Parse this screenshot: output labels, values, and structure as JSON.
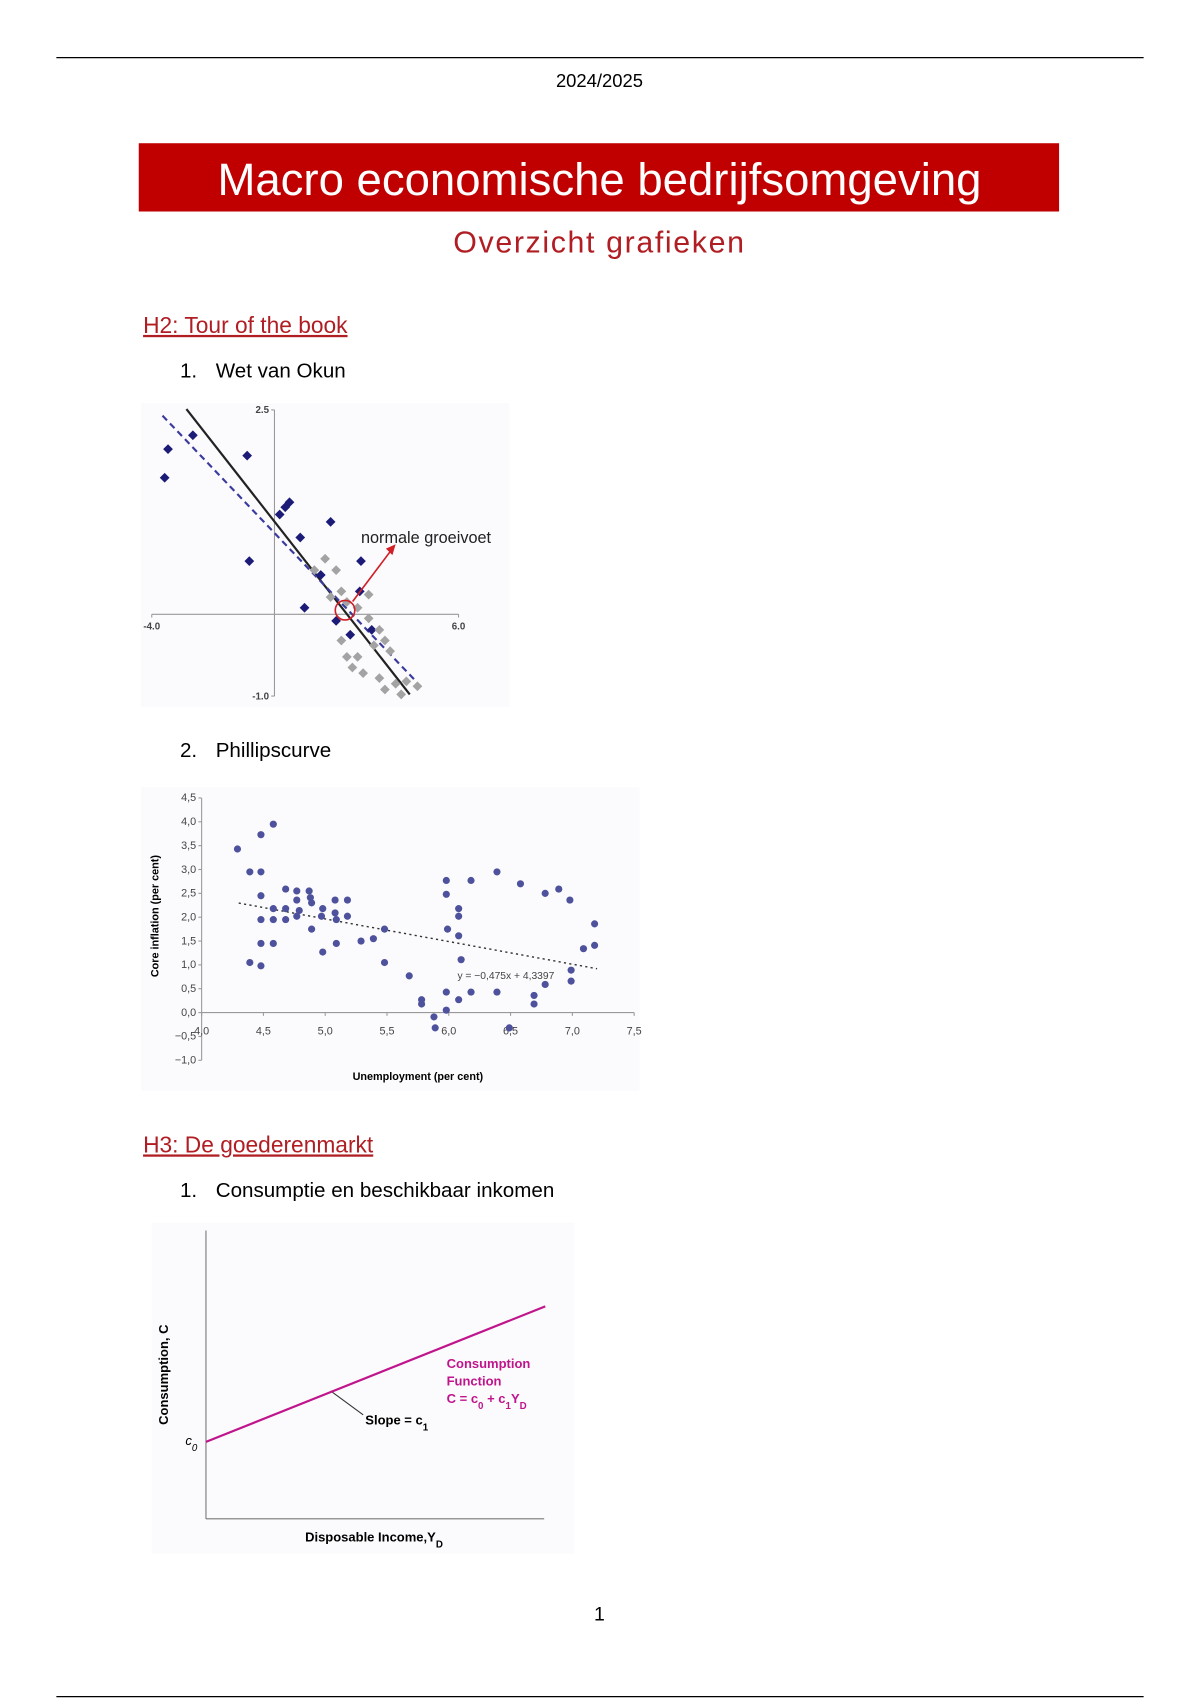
{
  "header": {
    "date": "2024/2025"
  },
  "title": "Macro economische bedrijfsomgeving",
  "subtitle": "Overzicht grafieken",
  "sections": [
    {
      "heading": "H2: Tour of the book",
      "items": [
        {
          "number": "1.",
          "label": "Wet van Okun"
        },
        {
          "number": "2.",
          "label": "Phillipscurve"
        }
      ]
    },
    {
      "heading": "H3: De goederenmarkt",
      "items": [
        {
          "number": "1.",
          "label": "Consumptie en beschikbaar inkomen"
        }
      ]
    }
  ],
  "footer": {
    "page": "1"
  },
  "chart_data": [
    {
      "type": "scatter",
      "xlim": [
        -4,
        6
      ],
      "ylim": [
        -1,
        2.5
      ],
      "xticks": [
        {
          "value": -4,
          "label": "-4.0"
        },
        {
          "value": 6,
          "label": "6.0"
        }
      ],
      "yticks": [
        2.5,
        {
          "value": -1,
          "label": "-1.0"
        }
      ],
      "series": [
        {
          "color": "#1c1c78",
          "marker": "diamond",
          "x": [
            -3.58,
            -3.47,
            -2.66,
            -0.89,
            -0.82,
            0.17,
            0.35,
            0.49,
            0.84,
            1.83,
            1.51,
            0.98,
            2.82,
            2.78,
            2.01,
            2.47,
            3.17
          ],
          "y": [
            1.67,
            2.02,
            2.19,
            1.94,
            0.65,
            1.22,
            1.31,
            1.37,
            0.94,
            1.13,
            0.48,
            0.08,
            0.65,
            0.28,
            -0.08,
            -0.25,
            -0.19
          ]
        },
        {
          "color": "#a3a3a3",
          "marker": "diamond",
          "x": [
            1.65,
            1.3,
            2.01,
            2.18,
            1.83,
            2.36,
            2.71,
            3.07,
            3.24,
            3.6,
            2.36,
            2.54,
            2.89,
            3.42,
            3.6,
            3.95,
            4.3,
            4.66,
            4.13,
            3.42,
            3.77,
            2.71,
            2.18,
            3.07
          ],
          "y": [
            0.68,
            0.54,
            0.54,
            0.28,
            0.21,
            0.15,
            0.08,
            -0.05,
            -0.38,
            -0.32,
            -0.52,
            -0.65,
            -0.72,
            -0.78,
            -0.92,
            -0.85,
            -0.82,
            -0.88,
            -0.98,
            -0.19,
            -0.45,
            -0.52,
            -0.32,
            0.24
          ]
        }
      ],
      "lines": [
        {
          "color": "#222222",
          "dash": false,
          "x": [
            -2.87,
            4.41
          ],
          "y": [
            2.51,
            -0.98
          ]
        },
        {
          "color": "#3b3b9e",
          "dash": true,
          "x": [
            -3.65,
            4.59
          ],
          "y": [
            2.43,
            -0.81
          ]
        }
      ],
      "annotation": {
        "text": "normale groeivoet",
        "color": "#d01f26",
        "x": 2.3,
        "y": 0.05
      }
    },
    {
      "type": "scatter",
      "xlabel": "Unemployment (per cent)",
      "ylabel": "Core inflation (per cent)",
      "xlim": [
        4,
        7.5
      ],
      "ylim": [
        -1,
        4.5
      ],
      "xticks": [
        {
          "value": 4,
          "label": "4,0"
        },
        {
          "value": 4.5,
          "label": "4,5"
        },
        {
          "value": 5,
          "label": "5,0"
        },
        {
          "value": 5.5,
          "label": "5,5"
        },
        {
          "value": 6,
          "label": "6,0"
        },
        {
          "value": 6.5,
          "label": "6,5"
        },
        {
          "value": 7,
          "label": "7,0"
        },
        {
          "value": 7.5,
          "label": "7,5"
        }
      ],
      "yticks": [
        {
          "value": -1,
          "label": "−1,0"
        },
        {
          "value": -0.5,
          "label": "−0,5"
        },
        {
          "value": 0,
          "label": "0,0"
        },
        {
          "value": 0.5,
          "label": "0,5"
        },
        {
          "value": 1,
          "label": "1,0"
        },
        {
          "value": 1.5,
          "label": "1,5"
        },
        {
          "value": 2,
          "label": "2,0"
        },
        {
          "value": 2.5,
          "label": "2,5"
        },
        {
          "value": 3,
          "label": "3,0"
        },
        {
          "value": 3.5,
          "label": "3,5"
        },
        {
          "value": 4,
          "label": "4,0"
        },
        {
          "value": 4.5,
          "label": "4,5"
        }
      ],
      "series": [
        {
          "color": "#4e519c",
          "marker": "circle",
          "x": [
            4.29,
            4.39,
            4.48,
            4.58,
            4.48,
            4.48,
            4.39,
            4.48,
            4.48,
            4.48,
            4.58,
            4.58,
            4.58,
            4.68,
            4.68,
            4.68,
            4.77,
            4.77,
            4.77,
            4.79,
            4.87,
            4.88,
            4.89,
            4.89,
            4.97,
            4.98,
            4.98,
            5.08,
            5.08,
            5.09,
            5.09,
            5.18,
            5.18,
            5.29,
            5.39,
            5.48,
            5.48,
            5.68,
            5.78,
            5.78,
            5.88,
            5.89,
            5.98,
            5.98,
            5.99,
            5.98,
            5.98,
            6.08,
            6.08,
            6.08,
            6.1,
            6.08,
            6.18,
            6.18,
            6.39,
            6.39,
            6.49,
            6.58,
            6.78,
            6.89,
            6.98,
            6.99,
            6.99,
            6.78,
            6.69,
            6.69,
            7.09,
            7.18,
            7.18
          ],
          "y": [
            3.43,
            2.95,
            3.73,
            3.95,
            2.95,
            2.45,
            1.05,
            0.98,
            1.95,
            1.45,
            1.45,
            2.18,
            1.95,
            1.95,
            2.18,
            2.59,
            2.55,
            2.36,
            2.02,
            2.14,
            2.55,
            2.41,
            2.3,
            1.75,
            2.02,
            1.27,
            2.18,
            2.36,
            2.09,
            1.95,
            1.45,
            2.36,
            2.02,
            1.5,
            1.55,
            1.75,
            1.05,
            0.77,
            0.27,
            0.18,
            -0.09,
            -0.32,
            2.77,
            2.48,
            1.75,
            0.43,
            0.05,
            2.18,
            2.02,
            1.61,
            1.11,
            0.27,
            2.77,
            0.43,
            2.95,
            0.43,
            -0.32,
            2.7,
            2.5,
            2.59,
            2.36,
            0.89,
            0.66,
            0.59,
            0.36,
            0.18,
            1.34,
            1.86,
            1.41
          ]
        }
      ],
      "trendline": {
        "slope": -0.475,
        "intercept": 4.3397,
        "x": [
          4.3,
          7.2
        ],
        "label": "y = −0,475x + 4,3397",
        "color": "#333333"
      }
    },
    {
      "type": "diagram",
      "color": "#c0148c",
      "ylabel": [
        {
          "text": "Consumption, C"
        }
      ],
      "xlabel": [
        {
          "text": "Disposable Income,Y"
        },
        {
          "sub": "D"
        }
      ],
      "intercept_label": [
        {
          "text": "c"
        },
        {
          "sub": "0"
        }
      ],
      "slope_label": [
        {
          "text": "Slope = c"
        },
        {
          "sub": "1"
        }
      ],
      "function_label": [
        [
          {
            "text": "Consumption"
          }
        ],
        [
          {
            "text": "Function"
          }
        ],
        [
          {
            "text": "C = c"
          },
          {
            "sub": "0"
          },
          {
            "text": " + c"
          },
          {
            "sub": "1"
          },
          {
            "text": "Y"
          },
          {
            "sub": "D"
          }
        ]
      ]
    }
  ]
}
